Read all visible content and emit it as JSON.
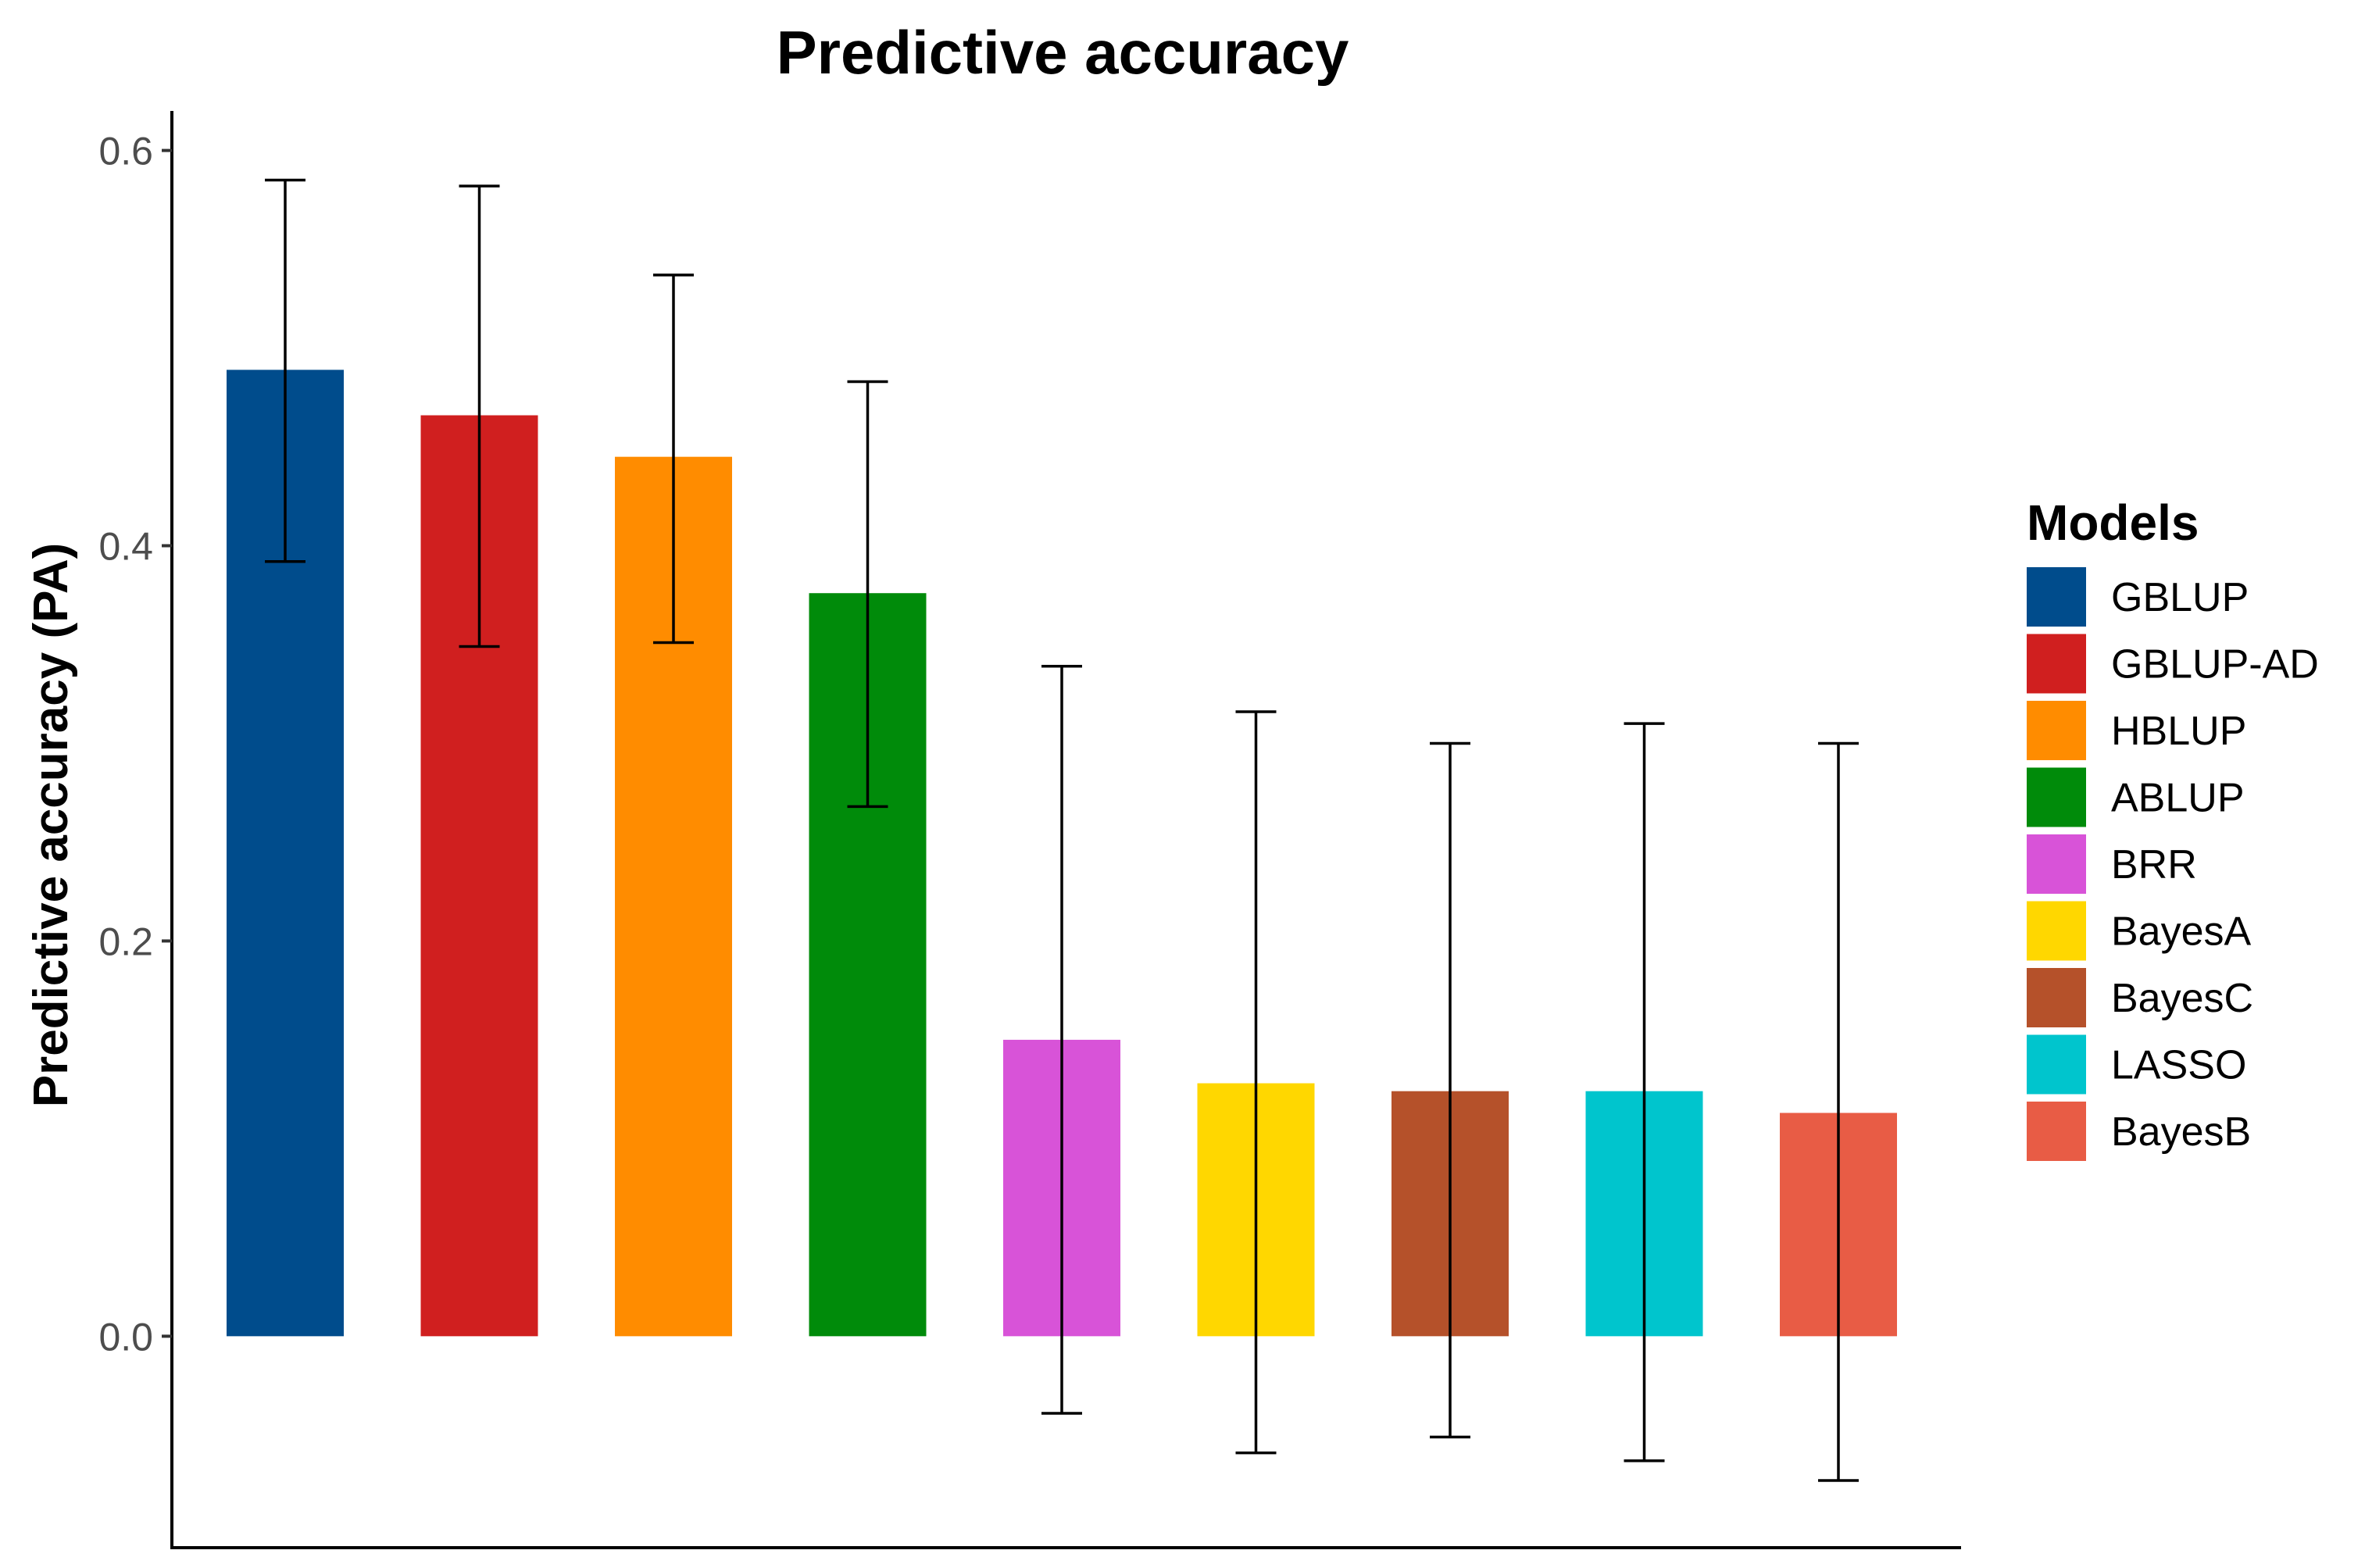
{
  "chart_data": {
    "type": "bar",
    "title": "Predictive accuracy",
    "ylabel": "Predictive accuracy (PA)",
    "xlabel": "",
    "ylim": [
      -0.107,
      0.62
    ],
    "yticks": [
      "0.0",
      "0.2",
      "0.4",
      "0.6"
    ],
    "ytick_values": [
      0.0,
      0.2,
      0.4,
      0.6
    ],
    "grid": false,
    "legend_title": "Models",
    "legend_position": "right",
    "categories": [
      "GBLUP",
      "GBLUP-AD",
      "HBLUP",
      "ABLUP",
      "BRR",
      "BayesA",
      "BayesC",
      "LASSO",
      "BayesB"
    ],
    "values": [
      0.489,
      0.466,
      0.445,
      0.376,
      0.15,
      0.128,
      0.124,
      0.124,
      0.113
    ],
    "error_low": [
      0.392,
      0.349,
      0.351,
      0.268,
      -0.039,
      -0.059,
      -0.051,
      -0.063,
      -0.073
    ],
    "error_high": [
      0.585,
      0.582,
      0.537,
      0.483,
      0.339,
      0.316,
      0.3,
      0.31,
      0.3
    ],
    "colors": [
      "#004C8C",
      "#D01F1F",
      "#FF8C00",
      "#008B0A",
      "#D853D8",
      "#FFD700",
      "#B5512A",
      "#00C5CD",
      "#E85C45"
    ]
  }
}
